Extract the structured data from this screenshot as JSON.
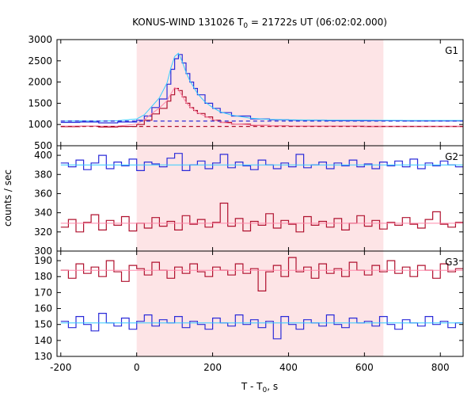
{
  "chart_data": {
    "type": "line",
    "title": {
      "main": "KONUS-WIND 131026 T",
      "sub": "0",
      "rest": " = 21722s UT (06:02:02.000)"
    },
    "xlabel": {
      "main": "T - T",
      "sub": "0",
      "rest": ", s"
    },
    "ylabel": "counts / sec",
    "xlim": [
      -210,
      860
    ],
    "x_ticks": [
      -200,
      0,
      200,
      400,
      600,
      800
    ],
    "shaded_interval": [
      0,
      650
    ],
    "colors": {
      "shade": "#fde4e6",
      "blue": "#2b2bd9",
      "red": "#b0102e",
      "cyan": "#33ccff",
      "pink": "#ff88aa"
    },
    "panels": [
      {
        "label": "G1",
        "ylim": [
          500,
          3000
        ],
        "y_ticks": [
          500,
          1000,
          1500,
          2000,
          2500,
          3000
        ],
        "series": [
          {
            "color": "blue",
            "style": "step",
            "x": [
              -200,
              -150,
              -100,
              -50,
              0,
              20,
              40,
              60,
              80,
              90,
              100,
              110,
              120,
              130,
              140,
              150,
              160,
              180,
              200,
              220,
              250,
              300,
              350,
              400,
              500,
              600,
              700,
              860
            ],
            "y": [
              1050,
              1060,
              1040,
              1060,
              1100,
              1200,
              1400,
              1600,
              1950,
              2300,
              2550,
              2650,
              2450,
              2200,
              2000,
              1850,
              1700,
              1500,
              1380,
              1280,
              1200,
              1130,
              1110,
              1100,
              1090,
              1090,
              1085,
              1085
            ]
          },
          {
            "color": "cyan",
            "style": "line",
            "x": [
              -200,
              -150,
              -100,
              -50,
              0,
              20,
              40,
              60,
              80,
              90,
              100,
              110,
              120,
              130,
              140,
              150,
              160,
              180,
              200,
              220,
              250,
              300,
              350,
              400,
              500,
              600,
              700,
              860
            ],
            "y": [
              1080,
              1085,
              1080,
              1090,
              1130,
              1230,
              1430,
              1630,
              1980,
              2330,
              2600,
              2680,
              2480,
              2230,
              2030,
              1880,
              1730,
              1530,
              1400,
              1300,
              1220,
              1150,
              1120,
              1110,
              1100,
              1100,
              1095,
              1095
            ]
          },
          {
            "color": "red",
            "style": "step",
            "x": [
              -200,
              -150,
              -100,
              -50,
              0,
              20,
              40,
              60,
              80,
              90,
              100,
              110,
              120,
              130,
              140,
              150,
              160,
              180,
              200,
              220,
              250,
              300,
              350,
              400,
              500,
              600,
              700,
              860
            ],
            "y": [
              950,
              960,
              940,
              955,
              1000,
              1100,
              1250,
              1380,
              1550,
              1700,
              1850,
              1800,
              1650,
              1500,
              1400,
              1330,
              1260,
              1180,
              1100,
              1050,
              1010,
              980,
              970,
              960,
              960,
              955,
              955,
              955
            ]
          },
          {
            "color": "pink",
            "style": "line",
            "x": [
              -200,
              -150,
              -100,
              -50,
              0,
              20,
              40,
              60,
              80,
              90,
              100,
              110,
              120,
              130,
              140,
              150,
              160,
              180,
              200,
              220,
              250,
              300,
              350,
              400,
              500,
              600,
              700,
              860
            ],
            "y": [
              960,
              965,
              960,
              965,
              1010,
              1110,
              1260,
              1390,
              1560,
              1720,
              1870,
              1820,
              1670,
              1520,
              1420,
              1350,
              1280,
              1200,
              1120,
              1060,
              1020,
              990,
              975,
              965,
              965,
              960,
              960,
              960
            ]
          },
          {
            "color": "blue",
            "style": "dashed",
            "x": [
              -200,
              860
            ],
            "y": [
              1080,
              1080
            ]
          },
          {
            "color": "red",
            "style": "dashed",
            "x": [
              -200,
              860
            ],
            "y": [
              955,
              955
            ]
          }
        ]
      },
      {
        "label": "G2",
        "ylim": [
          300,
          410
        ],
        "y_ticks": [
          300,
          320,
          340,
          360,
          380,
          400
        ],
        "series": [
          {
            "color": "blue",
            "style": "step",
            "x": [
              -200,
              -180,
              -160,
              -140,
              -120,
              -100,
              -80,
              -60,
              -40,
              -20,
              0,
              20,
              40,
              60,
              80,
              100,
              120,
              140,
              160,
              180,
              200,
              220,
              240,
              260,
              280,
              300,
              320,
              340,
              360,
              380,
              400,
              420,
              440,
              460,
              480,
              500,
              520,
              540,
              560,
              580,
              600,
              620,
              640,
              660,
              680,
              700,
              720,
              740,
              760,
              780,
              800,
              820,
              840
            ],
            "y": [
              392,
              388,
              395,
              385,
              392,
              400,
              386,
              393,
              389,
              396,
              384,
              393,
              391,
              388,
              397,
              402,
              384,
              390,
              394,
              386,
              392,
              401,
              387,
              393,
              389,
              385,
              395,
              390,
              386,
              392,
              388,
              401,
              387,
              390,
              393,
              386,
              392,
              389,
              395,
              388,
              391,
              386,
              393,
              389,
              394,
              388,
              396,
              386,
              392,
              389,
              394,
              390,
              388
            ]
          },
          {
            "color": "cyan",
            "style": "line",
            "x": [
              -200,
              860
            ],
            "y": [
              390,
              390
            ]
          },
          {
            "color": "red",
            "style": "step",
            "x": [
              -200,
              -180,
              -160,
              -140,
              -120,
              -100,
              -80,
              -60,
              -40,
              -20,
              0,
              20,
              40,
              60,
              80,
              100,
              120,
              140,
              160,
              180,
              200,
              220,
              240,
              260,
              280,
              300,
              320,
              340,
              360,
              380,
              400,
              420,
              440,
              460,
              480,
              500,
              520,
              540,
              560,
              580,
              600,
              620,
              640,
              660,
              680,
              700,
              720,
              740,
              760,
              780,
              800,
              820,
              840
            ],
            "y": [
              325,
              333,
              320,
              330,
              338,
              322,
              332,
              327,
              336,
              321,
              329,
              324,
              335,
              326,
              331,
              322,
              337,
              328,
              333,
              325,
              330,
              350,
              326,
              334,
              321,
              331,
              327,
              339,
              324,
              332,
              328,
              320,
              336,
              327,
              331,
              325,
              334,
              322,
              329,
              337,
              326,
              332,
              323,
              330,
              327,
              335,
              328,
              324,
              333,
              341,
              328,
              325,
              330
            ]
          },
          {
            "color": "pink",
            "style": "line",
            "x": [
              -200,
              860
            ],
            "y": [
              329,
              329
            ]
          }
        ]
      },
      {
        "label": "G3",
        "ylim": [
          130,
          196
        ],
        "y_ticks": [
          130,
          140,
          150,
          160,
          170,
          180,
          190
        ],
        "series": [
          {
            "color": "red",
            "style": "step",
            "x": [
              -200,
              -180,
              -160,
              -140,
              -120,
              -100,
              -80,
              -60,
              -40,
              -20,
              0,
              20,
              40,
              60,
              80,
              100,
              120,
              140,
              160,
              180,
              200,
              220,
              240,
              260,
              280,
              300,
              320,
              340,
              360,
              380,
              400,
              420,
              440,
              460,
              480,
              500,
              520,
              540,
              560,
              580,
              600,
              620,
              640,
              660,
              680,
              700,
              720,
              740,
              760,
              780,
              800,
              820,
              840
            ],
            "y": [
              184,
              179,
              188,
              182,
              186,
              180,
              190,
              183,
              177,
              187,
              185,
              181,
              189,
              184,
              179,
              186,
              182,
              188,
              183,
              180,
              186,
              184,
              181,
              188,
              182,
              185,
              171,
              183,
              187,
              180,
              192,
              183,
              186,
              179,
              188,
              182,
              185,
              180,
              189,
              184,
              181,
              187,
              183,
              190,
              182,
              186,
              180,
              187,
              184,
              179,
              188,
              183,
              185
            ]
          },
          {
            "color": "pink",
            "style": "line",
            "x": [
              -200,
              860
            ],
            "y": [
              184,
              184
            ]
          },
          {
            "color": "blue",
            "style": "step",
            "x": [
              -200,
              -180,
              -160,
              -140,
              -120,
              -100,
              -80,
              -60,
              -40,
              -20,
              0,
              20,
              40,
              60,
              80,
              100,
              120,
              140,
              160,
              180,
              200,
              220,
              240,
              260,
              280,
              300,
              320,
              340,
              360,
              380,
              400,
              420,
              440,
              460,
              480,
              500,
              520,
              540,
              560,
              580,
              600,
              620,
              640,
              660,
              680,
              700,
              720,
              740,
              760,
              780,
              800,
              820,
              840
            ],
            "y": [
              152,
              148,
              155,
              150,
              146,
              157,
              151,
              149,
              154,
              147,
              152,
              156,
              149,
              153,
              151,
              155,
              148,
              152,
              150,
              147,
              154,
              151,
              149,
              156,
              150,
              153,
              148,
              152,
              141,
              155,
              150,
              147,
              153,
              151,
              149,
              156,
              150,
              148,
              154,
              151,
              152,
              149,
              155,
              150,
              147,
              153,
              151,
              149,
              155,
              150,
              152,
              148,
              151
            ]
          },
          {
            "color": "cyan",
            "style": "line",
            "x": [
              -200,
              860
            ],
            "y": [
              151,
              151
            ]
          }
        ]
      }
    ]
  }
}
